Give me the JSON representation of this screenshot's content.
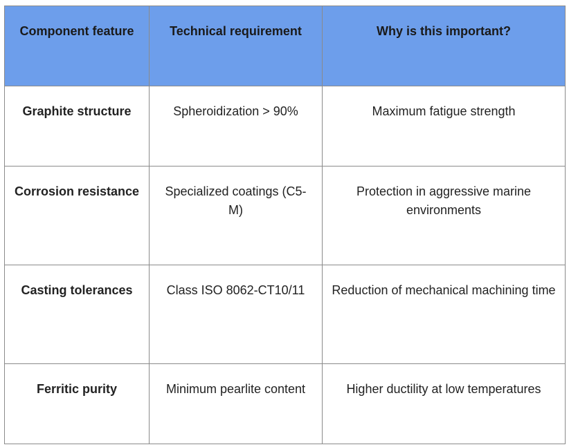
{
  "table": {
    "header": [
      "Component feature",
      "Technical requirement",
      "Why is this important?"
    ],
    "rows": [
      [
        "Graphite structure",
        "Spheroidization > 90%",
        "Maximum fatigue strength"
      ],
      [
        "Corrosion resistance",
        "Specialized coatings (C5-M)",
        "Protection in aggressive marine environments"
      ],
      [
        "Casting tolerances",
        "Class ISO 8062-CT10/11",
        "Reduction of mechanical machining time"
      ],
      [
        "Ferritic purity",
        "Minimum pearlite content",
        "Higher ductility at low temperatures"
      ]
    ]
  }
}
